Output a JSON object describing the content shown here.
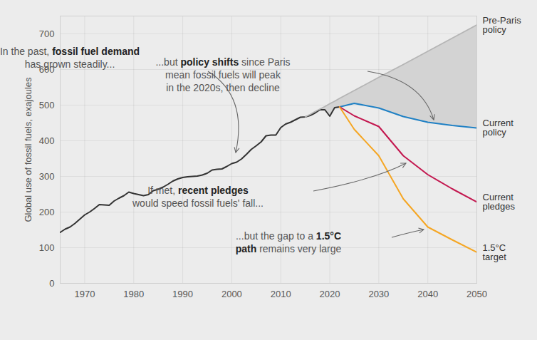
{
  "chart_data": {
    "type": "line",
    "ylabel": "Global use of fossil fuels, exajoules",
    "xlim": [
      1965,
      2050
    ],
    "ylim": [
      0,
      750
    ],
    "xticks": [
      1970,
      1980,
      1990,
      2000,
      2010,
      2020,
      2030,
      2040,
      2050
    ],
    "yticks": [
      0,
      100,
      200,
      300,
      400,
      500,
      600,
      700
    ],
    "grid": true,
    "x": [
      1965,
      1966,
      1967,
      1968,
      1969,
      1970,
      1971,
      1972,
      1973,
      1974,
      1975,
      1976,
      1977,
      1978,
      1979,
      1980,
      1981,
      1982,
      1983,
      1984,
      1985,
      1986,
      1987,
      1988,
      1989,
      1990,
      1991,
      1992,
      1993,
      1994,
      1995,
      1996,
      1997,
      1998,
      1999,
      2000,
      2001,
      2002,
      2003,
      2004,
      2005,
      2006,
      2007,
      2008,
      2009,
      2010,
      2011,
      2012,
      2013,
      2014,
      2015,
      2016,
      2017,
      2018,
      2019,
      2020,
      2021,
      2022,
      2025,
      2030,
      2035,
      2040,
      2045,
      2050
    ],
    "series": [
      {
        "color": "#333333",
        "values": [
          143,
          152,
          158,
          168,
          180,
          192,
          200,
          210,
          221,
          220,
          219,
          231,
          239,
          246,
          256,
          252,
          249,
          246,
          249,
          260,
          264,
          270,
          278,
          287,
          293,
          297,
          299,
          300,
          301,
          304,
          309,
          318,
          320,
          321,
          328,
          336,
          340,
          349,
          362,
          376,
          386,
          397,
          414,
          416,
          416,
          437,
          447,
          452,
          459,
          466,
          467,
          471,
          478,
          487,
          487,
          469,
          493,
          495,
          null,
          null,
          null,
          null,
          null,
          null
        ]
      },
      {
        "name": "Pre-Paris policy",
        "color": "#b5b5b5",
        "type": "area",
        "values": [
          null,
          null,
          null,
          null,
          null,
          null,
          null,
          null,
          null,
          null,
          null,
          null,
          null,
          null,
          null,
          null,
          null,
          null,
          null,
          null,
          null,
          null,
          null,
          null,
          null,
          null,
          null,
          null,
          null,
          null,
          null,
          null,
          null,
          null,
          null,
          null,
          null,
          null,
          null,
          null,
          null,
          null,
          null,
          null,
          null,
          null,
          null,
          null,
          null,
          null,
          467,
          474,
          482,
          489,
          496,
          504,
          511,
          519,
          541,
          578,
          614,
          651,
          688,
          725
        ]
      },
      {
        "name": "Current policy",
        "color": "#1f80c4",
        "values": [
          null,
          null,
          null,
          null,
          null,
          null,
          null,
          null,
          null,
          null,
          null,
          null,
          null,
          null,
          null,
          null,
          null,
          null,
          null,
          null,
          null,
          null,
          null,
          null,
          null,
          null,
          null,
          null,
          null,
          null,
          null,
          null,
          null,
          null,
          null,
          null,
          null,
          null,
          null,
          null,
          null,
          null,
          null,
          null,
          null,
          null,
          null,
          null,
          null,
          null,
          null,
          null,
          null,
          null,
          null,
          null,
          null,
          495,
          505,
          492,
          468,
          452,
          443,
          436
        ]
      },
      {
        "name": "Current pledges",
        "color": "#c3174f",
        "values": [
          null,
          null,
          null,
          null,
          null,
          null,
          null,
          null,
          null,
          null,
          null,
          null,
          null,
          null,
          null,
          null,
          null,
          null,
          null,
          null,
          null,
          null,
          null,
          null,
          null,
          null,
          null,
          null,
          null,
          null,
          null,
          null,
          null,
          null,
          null,
          null,
          null,
          null,
          null,
          null,
          null,
          null,
          null,
          null,
          null,
          null,
          null,
          null,
          null,
          null,
          null,
          null,
          null,
          null,
          null,
          null,
          null,
          495,
          470,
          440,
          358,
          305,
          265,
          228
        ]
      },
      {
        "name": "1.5°C target",
        "color": "#f5a623",
        "values": [
          null,
          null,
          null,
          null,
          null,
          null,
          null,
          null,
          null,
          null,
          null,
          null,
          null,
          null,
          null,
          null,
          null,
          null,
          null,
          null,
          null,
          null,
          null,
          null,
          null,
          null,
          null,
          null,
          null,
          null,
          null,
          null,
          null,
          null,
          null,
          null,
          null,
          null,
          null,
          null,
          null,
          null,
          null,
          null,
          null,
          null,
          null,
          null,
          null,
          null,
          null,
          null,
          null,
          null,
          null,
          null,
          null,
          495,
          432,
          358,
          237,
          158,
          122,
          87
        ]
      }
    ],
    "annotations": [
      {
        "lines": [
          "In the past, fossil fuel demand",
          "has grown steadily..."
        ],
        "bold": [
          "fossil fuel demand"
        ]
      },
      {
        "lines": [
          "...but policy shifts since Paris",
          "mean fossil fuels will peak",
          "in the 2020s, then decline"
        ],
        "bold": [
          "policy shifts"
        ]
      },
      {
        "lines": [
          "If met, recent pledges",
          "would speed fossil fuels' fall..."
        ],
        "bold": [
          "recent pledges"
        ]
      },
      {
        "lines": [
          "...but the gap to a 1.5°C",
          "path remains very large"
        ],
        "bold": [
          "1.5°C",
          "path"
        ]
      }
    ]
  }
}
